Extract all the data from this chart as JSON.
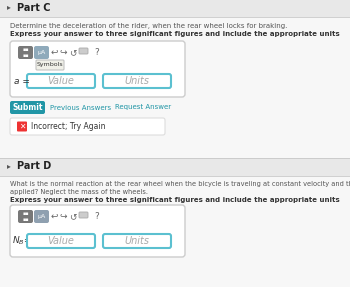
{
  "bg_top": "#e8e8e8",
  "bg_white_section": "#f5f5f5",
  "bg_content": "#ffffff",
  "partC_header": "Part C",
  "partC_desc1": "Determine the deceleration of the rider, when the rear wheel locks for braking.",
  "partC_desc2": "Express your answer to three significant figures and include the appropriate units",
  "partC_label": "a =",
  "partC_value_placeholder": "Value",
  "partC_units_placeholder": "Units",
  "symbols_tooltip": "Symbols",
  "submit_text": "Submit",
  "prev_answers_text": "Previous Answers",
  "request_answer_text": "Request Answer",
  "incorrect_text": "Incorrect; Try Again",
  "partD_header": "Part D",
  "partD_desc1": "What is the normal reaction at the rear wheel when the bicycle is traveling at constant velocity and the brakes are not",
  "partD_desc2": "applied? Neglect the mass of the wheels.",
  "partD_desc3": "Express your answer to three significant figures and include the appropriate units",
  "partD_label": "N_B =",
  "partD_value_placeholder": "Value",
  "partD_units_placeholder": "Units",
  "submit_color": "#2196a6",
  "link_color": "#2196a6",
  "border_color": "#cccccc",
  "header_separator": "#d0d0d0",
  "icon_bg_dark": "#787878",
  "icon_bg_light": "#8fa0b0",
  "icon_highlight": "#8faabb",
  "tooltip_bg": "#f0f0e8",
  "cyan_border": "#5bc0d0",
  "red_x_color": "#cc2222",
  "incorrect_border": "#dddddd",
  "text_dark": "#333333",
  "text_gray": "#555555",
  "text_light": "#888888"
}
